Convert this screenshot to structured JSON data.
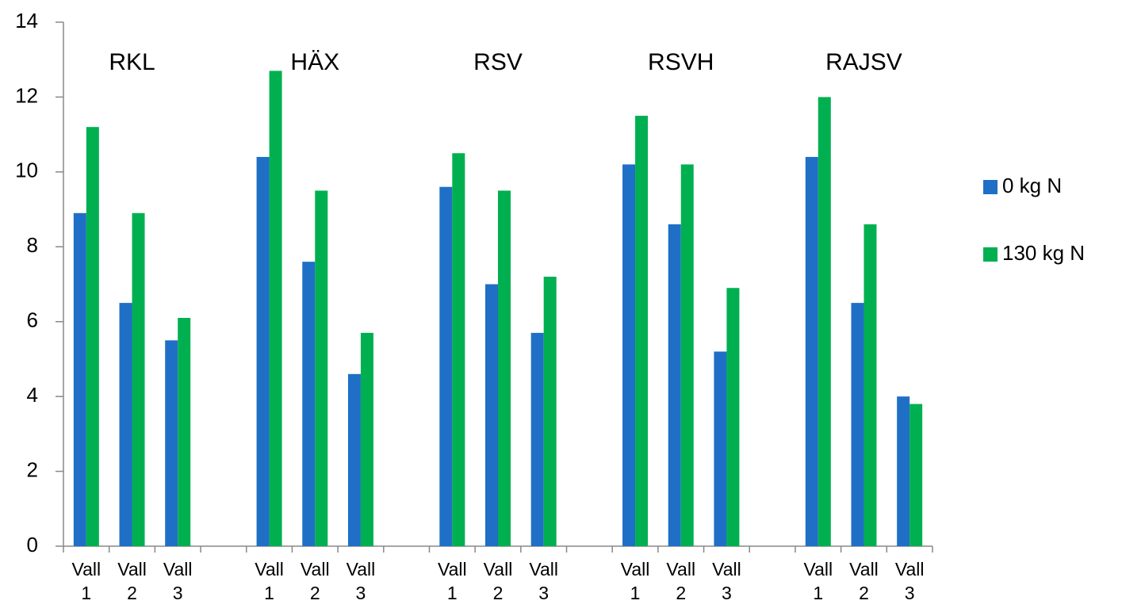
{
  "chart_data": {
    "type": "bar",
    "categories": [
      "Vall 1",
      "Vall 2",
      "Vall 3",
      null,
      "Vall 1",
      "Vall 2",
      "Vall 3",
      null,
      "Vall 1",
      "Vall 2",
      "Vall 3",
      null,
      "Vall 1",
      "Vall 2",
      "Vall 3",
      null,
      "Vall 1",
      "Vall 2",
      "Vall 3"
    ],
    "series": [
      {
        "name": "0 kg N",
        "color": "#1f6fc6",
        "values": [
          8.9,
          6.5,
          5.5,
          null,
          10.4,
          7.6,
          4.6,
          null,
          9.6,
          7.0,
          5.7,
          null,
          10.2,
          8.6,
          5.2,
          null,
          10.4,
          6.5,
          4.0
        ]
      },
      {
        "name": "130 kg N",
        "color": "#00b050",
        "values": [
          11.2,
          8.9,
          6.1,
          null,
          12.7,
          9.5,
          5.7,
          null,
          10.5,
          9.5,
          7.2,
          null,
          11.5,
          10.2,
          6.9,
          null,
          12.0,
          8.6,
          3.8
        ]
      }
    ],
    "annotations": [
      "RKL",
      "HÄX",
      "RSV",
      "RSVH",
      "RAJSV"
    ],
    "ylim": [
      0,
      14
    ],
    "yticks": [
      0,
      2,
      4,
      6,
      8,
      10,
      12,
      14
    ],
    "grid": false,
    "legend": "right"
  }
}
